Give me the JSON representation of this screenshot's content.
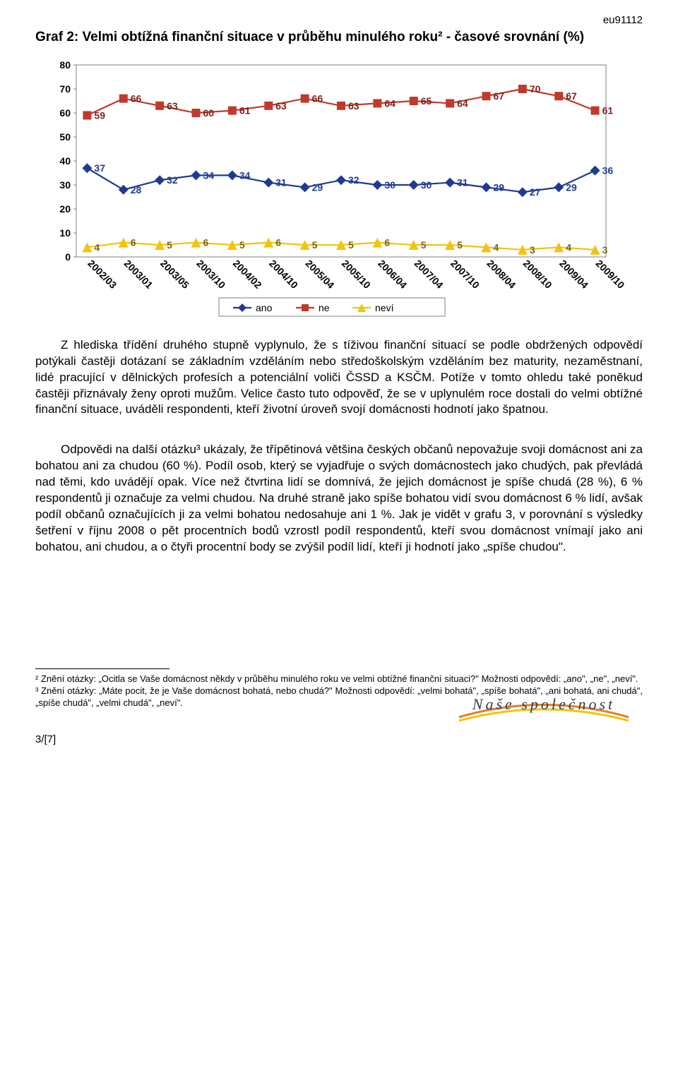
{
  "header_code": "eu91112",
  "chart_title": "Graf 2: Velmi obtížná finanční situace v průběhu minulého roku² - časové srovnání (%)",
  "chart": {
    "type": "line",
    "categories": [
      "2002/03",
      "2003/01",
      "2003/05",
      "2003/10",
      "2004/02",
      "2004/10",
      "2005/04",
      "2005/10",
      "2006/04",
      "2007/04",
      "2007/10",
      "2008/04",
      "2008/10",
      "2009/04",
      "2009/10"
    ],
    "series": [
      {
        "name": "ano",
        "color": "#1f3a93",
        "marker": "diamond",
        "values": [
          37,
          28,
          32,
          34,
          34,
          31,
          29,
          32,
          30,
          30,
          31,
          29,
          27,
          29,
          36
        ]
      },
      {
        "name": "ne",
        "color": "#c0392b",
        "marker": "square",
        "values": [
          59,
          66,
          63,
          60,
          61,
          63,
          66,
          63,
          64,
          65,
          64,
          67,
          70,
          67,
          61
        ]
      },
      {
        "name": "neví",
        "color": "#f1c40f",
        "marker": "triangle",
        "values": [
          4,
          6,
          5,
          6,
          5,
          6,
          5,
          5,
          6,
          5,
          5,
          4,
          3,
          4,
          3
        ]
      }
    ],
    "ylim": [
      0,
      80
    ],
    "ytick_step": 10,
    "plot_bg": "#ffffff",
    "border_color": "#808080",
    "label_fontsize": 14,
    "tick_fontsize": 14,
    "marker_size": 7,
    "line_width": 2.2,
    "value_label_color": "#1f3a93"
  },
  "legend_labels": {
    "ano": "ano",
    "ne": "ne",
    "nevi": "neví"
  },
  "para1": "Z hlediska třídění druhého stupně vyplynulo, že s tíživou finanční situací se podle obdržených odpovědí potýkali častěji dotázaní se základním vzděláním nebo středoškolským vzděláním bez maturity, nezaměstnaní, lidé pracující v dělnických profesích a potenciální voliči ČSSD a KSČM. Potíže v tomto ohledu také poněkud častěji přiznávaly ženy oproti mužům. Velice často tuto odpověď, že se v uplynulém roce dostali do velmi obtížné finanční situace, uváděli respondenti, kteří životní úroveň svojí domácnosti hodnotí jako špatnou.",
  "para2": "Odpovědi na další otázku³ ukázaly, že třípětinová většina českých občanů nepovažuje svoji domácnost ani za bohatou ani za chudou (60 %). Podíl osob, který se vyjadřuje o svých domácnostech jako chudých, pak převládá nad těmi, kdo uvádějí opak. Více než čtvrtina lidí se domnívá, že jejich domácnost je spíše chudá (28 %), 6 % respondentů ji označuje za velmi chudou. Na druhé straně jako spíše bohatou vidí svou domácnost 6 % lidí, avšak podíl občanů označujících ji za velmi bohatou nedosahuje ani 1 %. Jak je vidět v grafu 3, v porovnání s výsledky šetření v říjnu 2008 o pět procentních bodů vzrostl podíl respondentů, kteří svou domácnost vnímají jako ani bohatou, ani chudou, a o čtyři procentní body se zvýšil podíl lidí, kteří ji hodnotí jako „spíše chudou\".",
  "footnote2": "² Znění otázky: „Ocitla se Vaše domácnost někdy v průběhu minulého roku ve velmi obtížné finanční situaci?\" Možnosti odpovědí: „ano\", „ne\", „neví\".",
  "footnote3": "³ Znění otázky: „Máte pocit, že je Vaše domácnost bohatá, nebo chudá?\" Možnosti odpovědí: „velmi bohatá\", „spíše bohatá\", „ani bohatá, ani chudá\", „spíše chudá\", „velmi chudá\", „neví\".",
  "page_num": "3/[7]",
  "logo_text": "Naše společnost",
  "logo_colors": [
    "#e67e22",
    "#c0392b",
    "#2c3e50"
  ]
}
